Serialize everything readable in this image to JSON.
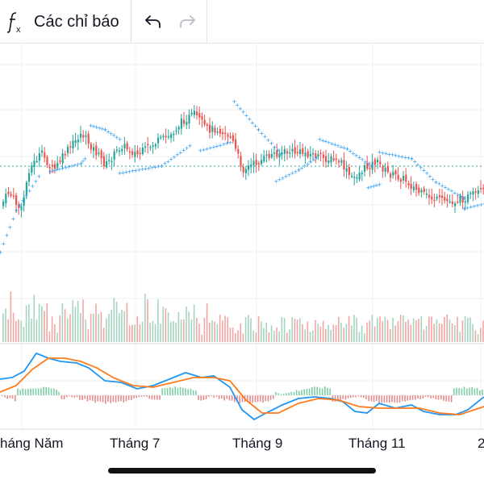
{
  "toolbar": {
    "indicators_label": "Các chỉ báo",
    "fx_icon": "fx-icon",
    "undo_icon": "undo-icon",
    "redo_icon": "redo-icon"
  },
  "x_axis": {
    "labels": [
      "háng Năm",
      "Tháng 7",
      "Tháng 9",
      "Tháng 11",
      "2"
    ]
  },
  "colors": {
    "up": "#26a69a",
    "down": "#ef5350",
    "psar": "#2196f3",
    "macd_line": "#2196f3",
    "signal_line": "#ff7b1c",
    "reference_line": "#26a69a"
  }
}
